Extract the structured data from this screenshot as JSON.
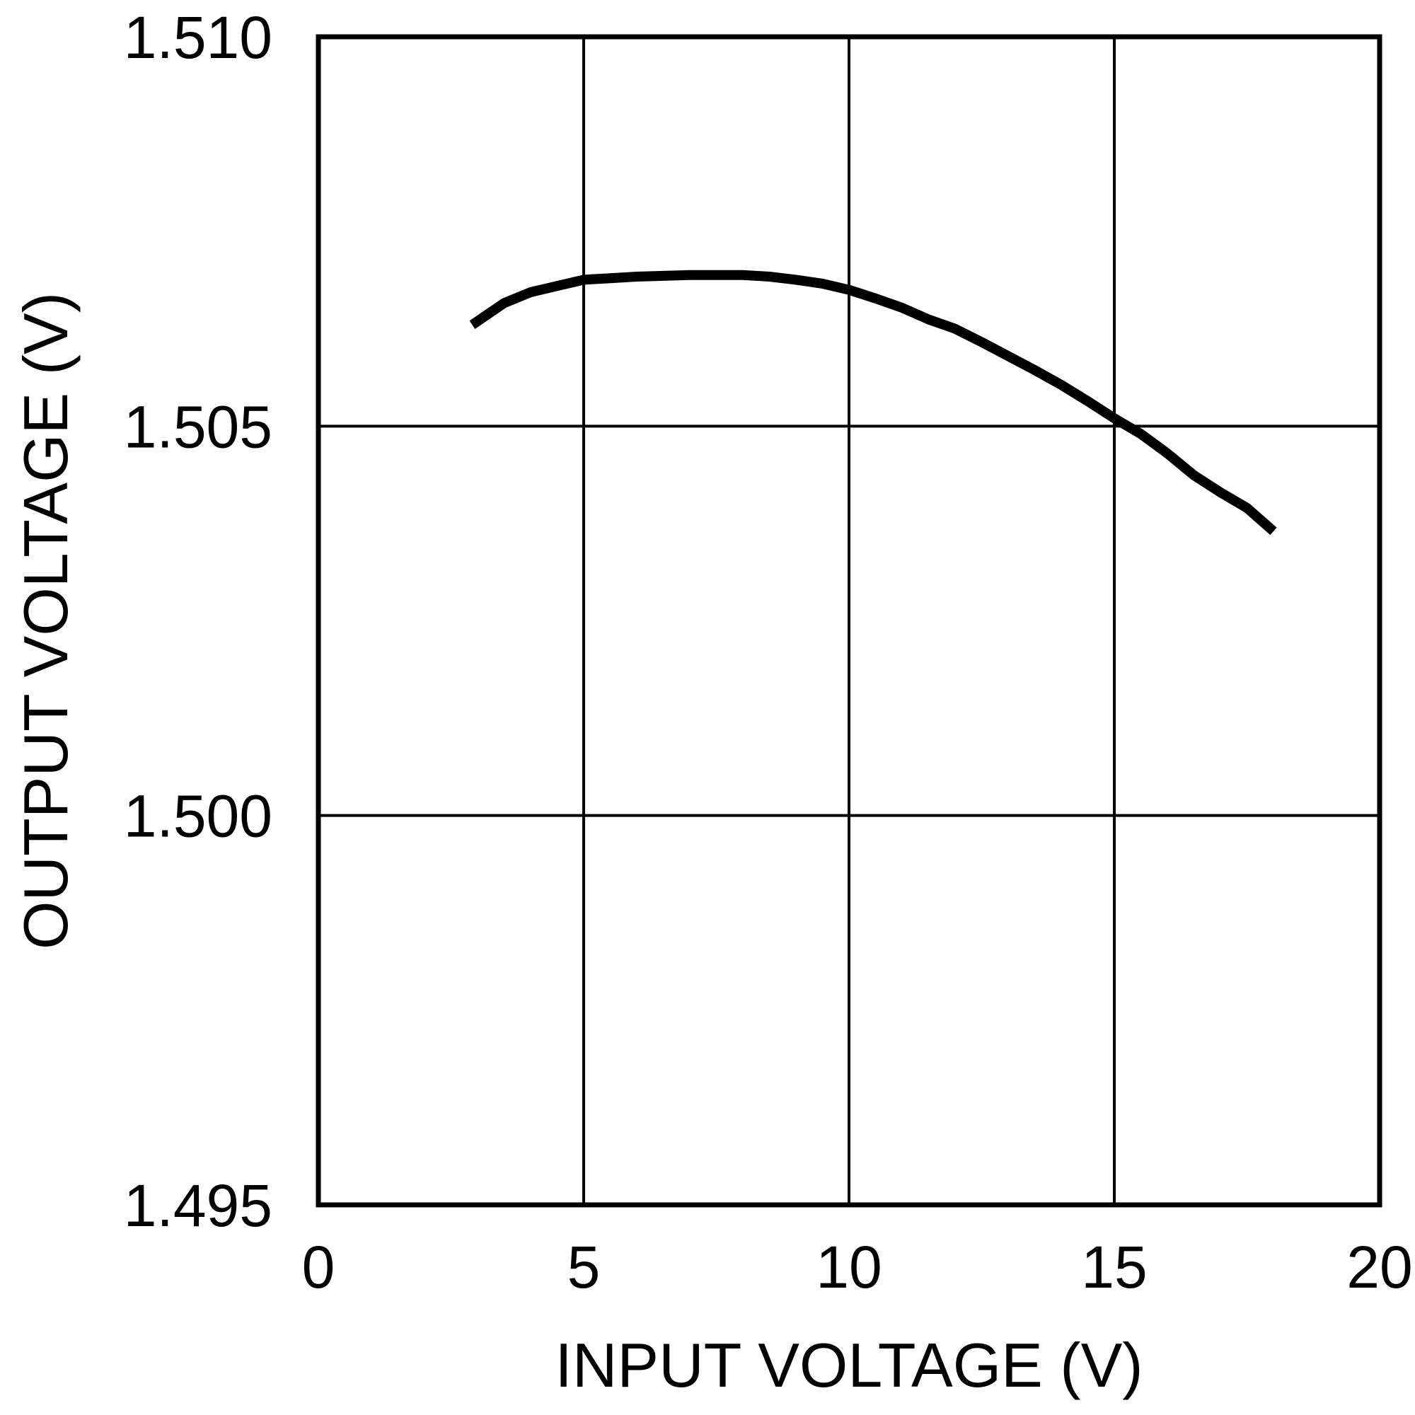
{
  "chart_data": {
    "type": "line",
    "title": "",
    "xlabel": "INPUT VOLTAGE (V)",
    "ylabel": "OUTPUT VOLTAGE (V)",
    "xlim": [
      0,
      20
    ],
    "ylim": [
      1.495,
      1.51
    ],
    "grid": true,
    "x_ticks": [
      0,
      5,
      10,
      15,
      20
    ],
    "x_tick_labels": [
      "0",
      "5",
      "10",
      "15",
      "20"
    ],
    "y_ticks": [
      1.495,
      1.5,
      1.505,
      1.51
    ],
    "y_tick_labels": [
      "1.495",
      "1.500",
      "1.505",
      "1.510"
    ],
    "series": [
      {
        "color": "#000000",
        "x": [
          2.9,
          3.5,
          4.0,
          4.5,
          5.0,
          5.5,
          6.0,
          6.5,
          7.0,
          7.5,
          8.0,
          8.5,
          9.0,
          9.5,
          10.0,
          10.5,
          11.0,
          11.5,
          12.0,
          12.5,
          13.0,
          13.5,
          14.0,
          14.5,
          15.0,
          15.5,
          16.0,
          16.5,
          17.0,
          17.5,
          18.0
        ],
        "y": [
          1.5063,
          1.50658,
          1.50672,
          1.5068,
          1.50688,
          1.5069,
          1.50692,
          1.50693,
          1.50694,
          1.50694,
          1.50694,
          1.50692,
          1.50688,
          1.50683,
          1.50675,
          1.50664,
          1.50652,
          1.50637,
          1.50625,
          1.50608,
          1.5059,
          1.50572,
          1.50553,
          1.50532,
          1.5051,
          1.5049,
          1.50465,
          1.50437,
          1.50415,
          1.50395,
          1.50365
        ]
      }
    ]
  }
}
